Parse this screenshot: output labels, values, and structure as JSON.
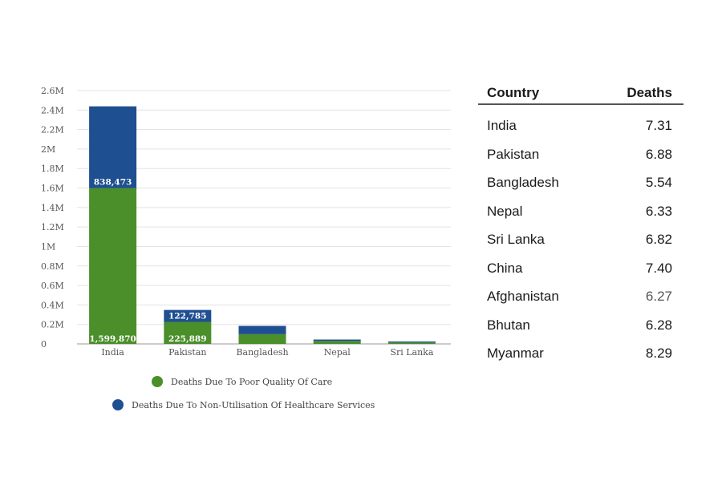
{
  "chart_data": {
    "type": "bar",
    "stacked": true,
    "categories": [
      "India",
      "Pakistan",
      "Bangladesh",
      "Nepal",
      "Sri Lanka"
    ],
    "series": [
      {
        "name": "Deaths Due To Poor Quality Of Care",
        "color": "#4a8f2a",
        "values": [
          1599870,
          225889,
          100000,
          30000,
          15000
        ]
      },
      {
        "name": "Deaths Due To Non-Utilisation Of Healthcare Services",
        "color": "#1e4f91",
        "values": [
          838473,
          122785,
          85000,
          15000,
          10000
        ]
      }
    ],
    "data_labels": {
      "green": [
        "1,599,870",
        "225,889",
        "",
        "",
        ""
      ],
      "blue": [
        "838,473",
        "122,785",
        "",
        "",
        ""
      ]
    },
    "y_ticks": [
      "0",
      "0.2M",
      "0.4M",
      "0.6M",
      "0.8M",
      "1M",
      "1.2M",
      "1.4M",
      "1.6M",
      "1.8M",
      "2M",
      "2.2M",
      "2.4M",
      "2.6M"
    ],
    "ylim": [
      0,
      2600000
    ],
    "grid": true,
    "legend_position": "bottom"
  },
  "table": {
    "headers": [
      "Country",
      "Deaths"
    ],
    "rows": [
      {
        "country": "India",
        "deaths": "7.31"
      },
      {
        "country": "Pakistan",
        "deaths": "6.88"
      },
      {
        "country": "Bangladesh",
        "deaths": "5.54"
      },
      {
        "country": "Nepal",
        "deaths": "6.33"
      },
      {
        "country": "Sri Lanka",
        "deaths": "6.82"
      },
      {
        "country": "China",
        "deaths": "7.40"
      },
      {
        "country": "Afghanistan",
        "deaths": "6.27"
      },
      {
        "country": "Bhutan",
        "deaths": "6.28"
      },
      {
        "country": "Myanmar",
        "deaths": "8.29"
      }
    ]
  }
}
